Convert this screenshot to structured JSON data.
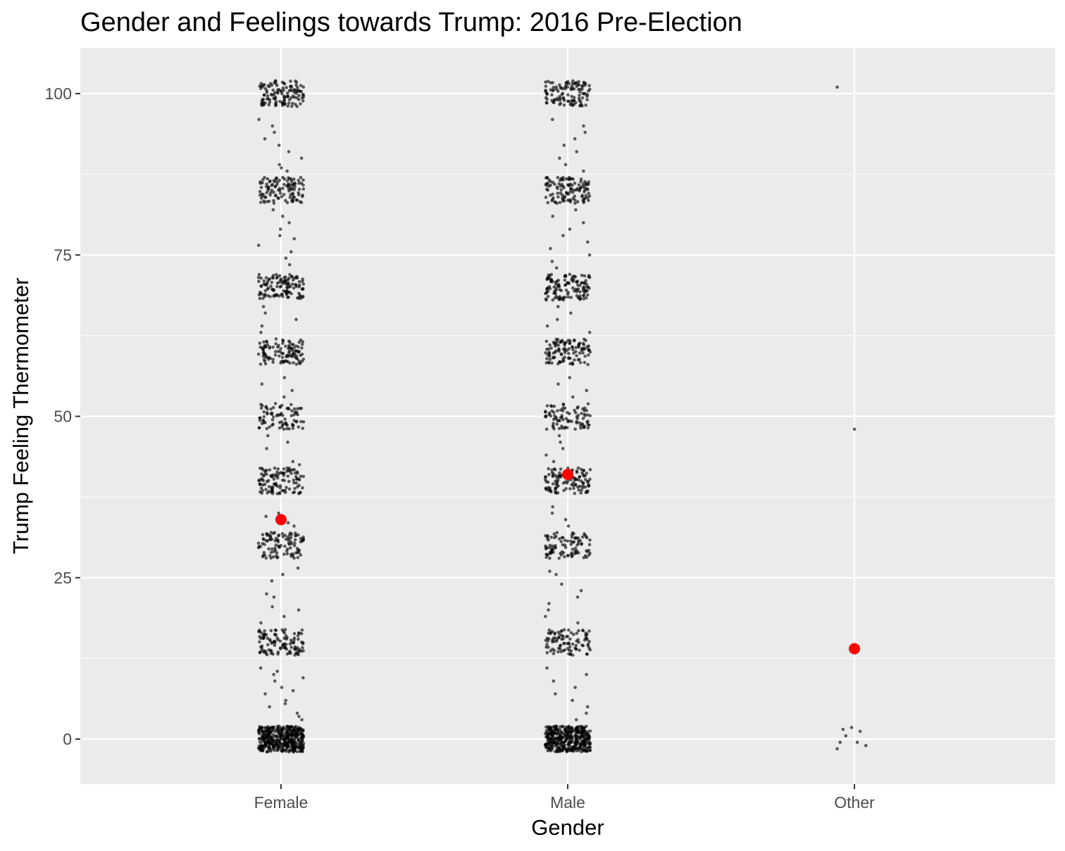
{
  "chart_data": {
    "type": "scatter",
    "title": "Gender and Feelings towards Trump: 2016 Pre-Election",
    "xlabel": "Gender",
    "ylabel": "Trump Feeling Thermometer",
    "categories": [
      "Female",
      "Male",
      "Other"
    ],
    "yticks": [
      0,
      25,
      50,
      75,
      100
    ],
    "ylim": [
      -7,
      107
    ],
    "grid": true,
    "colors": {
      "panel_background": "#EBEBEB",
      "grid": "#FFFFFF",
      "points": "#000000",
      "means": "#FF0000",
      "tick_label": "#4D4D4D",
      "text": "#000000"
    },
    "point_clusters": {
      "Female": [
        {
          "y": 0,
          "n": 420
        },
        {
          "y": 15,
          "n": 110
        },
        {
          "y": 30,
          "n": 100
        },
        {
          "y": 40,
          "n": 110
        },
        {
          "y": 50,
          "n": 80
        },
        {
          "y": 60,
          "n": 110
        },
        {
          "y": 70,
          "n": 120
        },
        {
          "y": 85,
          "n": 110
        },
        {
          "y": 100,
          "n": 120
        }
      ],
      "Male": [
        {
          "y": 0,
          "n": 380
        },
        {
          "y": 15,
          "n": 95
        },
        {
          "y": 30,
          "n": 95
        },
        {
          "y": 40,
          "n": 110
        },
        {
          "y": 50,
          "n": 85
        },
        {
          "y": 60,
          "n": 110
        },
        {
          "y": 70,
          "n": 125
        },
        {
          "y": 85,
          "n": 115
        },
        {
          "y": 100,
          "n": 110
        }
      ]
    },
    "scattered_points": {
      "Female": [
        1,
        2,
        3,
        3.5,
        4,
        5,
        5.5,
        6,
        7,
        7.5,
        8,
        9,
        9.5,
        10,
        10.5,
        11,
        18,
        19,
        20,
        20.5,
        22,
        22.5,
        24.5,
        25.5,
        26.5,
        32,
        33,
        33.5,
        34.5,
        35,
        42,
        42.5,
        43,
        45,
        46,
        47,
        48,
        53,
        54,
        55,
        56,
        63,
        64,
        65,
        66,
        67,
        73.5,
        74.5,
        75.5,
        76.5,
        77.5,
        78,
        79,
        80,
        81,
        82,
        87,
        88,
        88.5,
        89,
        90,
        91,
        92,
        93,
        94,
        95,
        96
      ],
      "Male": [
        1,
        2,
        3,
        4,
        5,
        6,
        7,
        8,
        9,
        10,
        11,
        18,
        19,
        20,
        21,
        22,
        23,
        24,
        25.5,
        26,
        33,
        34,
        35,
        36,
        43,
        44,
        45,
        46,
        47,
        53,
        54,
        55,
        56,
        63,
        64,
        65,
        66,
        67,
        73,
        74,
        75,
        76,
        77,
        78,
        79,
        80,
        81,
        82,
        87,
        88,
        89,
        90,
        91,
        92,
        93,
        94,
        95,
        96
      ],
      "Other": [
        {
          "dx": -0.06,
          "y": 101
        },
        {
          "dx": 0.0,
          "y": 48
        },
        {
          "dx": -0.05,
          "y": -0.5
        },
        {
          "dx": -0.03,
          "y": 0.5
        },
        {
          "dx": -0.04,
          "y": 1.5
        },
        {
          "dx": -0.01,
          "y": 1.8
        },
        {
          "dx": 0.02,
          "y": 1.2
        },
        {
          "dx": 0.01,
          "y": -0.5
        },
        {
          "dx": 0.04,
          "y": -1.0
        },
        {
          "dx": -0.06,
          "y": -1.5
        }
      ]
    },
    "means": [
      {
        "category": "Female",
        "value": 34
      },
      {
        "category": "Male",
        "value": 41
      },
      {
        "category": "Other",
        "value": 14
      }
    ]
  }
}
